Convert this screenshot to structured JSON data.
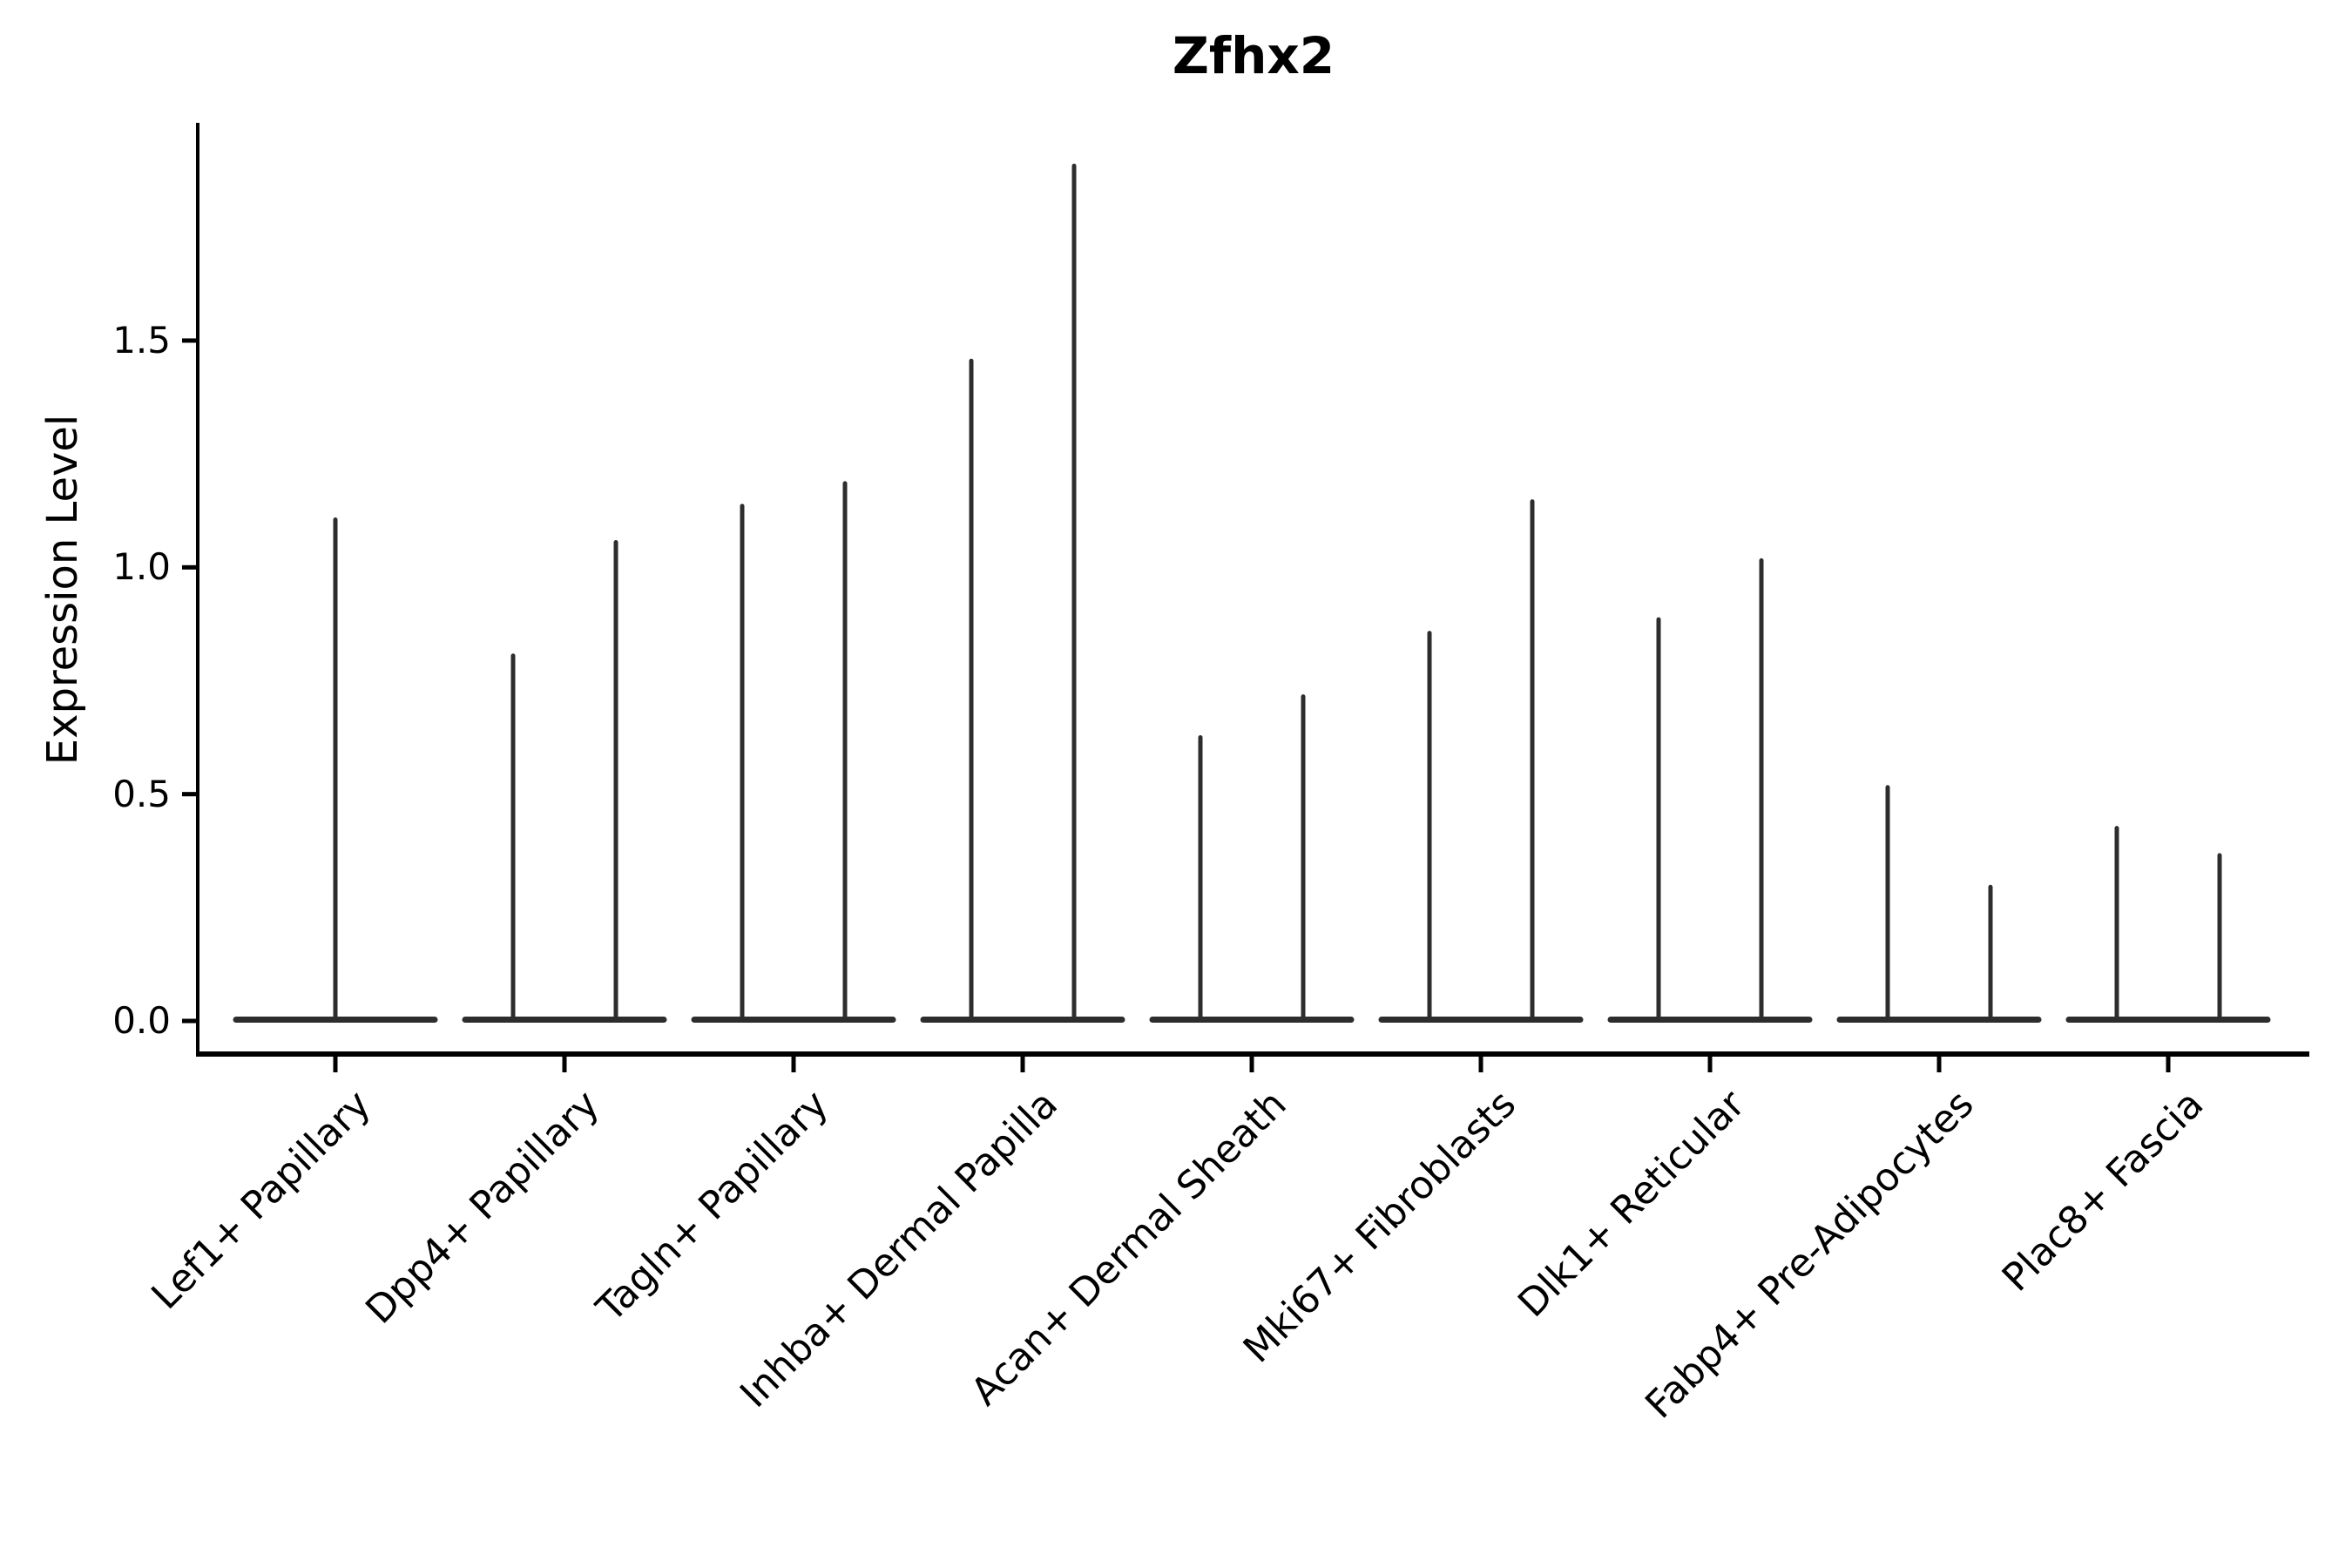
{
  "title": "Zfhx2",
  "axes": {
    "ylabel": "Expression Level",
    "ytick_labels": [
      "0.0",
      "0.5",
      "1.0",
      "1.5"
    ],
    "ytick_values": [
      0.0,
      0.5,
      1.0,
      1.5
    ]
  },
  "colors": {
    "violin": "#2d2d2d",
    "axis": "#000000",
    "text": "#000000",
    "background": "#ffffff"
  },
  "chart_data": {
    "type": "violin",
    "title": "Zfhx2",
    "xlabel": "",
    "ylabel": "Expression Level",
    "ylim": [
      0,
      1.98
    ],
    "yticks": [
      0.0,
      0.5,
      1.0,
      1.5
    ],
    "grid": false,
    "legend": "none",
    "style_note": "Expression is concentrated at 0 in every cluster, so each violin collapses to a flat baseline bar with thin vertical spike(s) reaching its maximum value.",
    "categories": [
      "Lef1+ Papillary",
      "Dpp4+ Papillary",
      "Tagln+ Papillary",
      "Inhba+ Dermal Papilla",
      "Acan+ Dermal Sheath",
      "Mki67+ Fibroblasts",
      "Dlk1+ Reticular",
      "Fabp4+ Pre-Adipocytes",
      "Plac8+ Fascia"
    ],
    "violins": [
      {
        "label": "Lef1+ Papillary",
        "spike_maxima": [
          1.11
        ]
      },
      {
        "label": "Dpp4+ Papillary",
        "spike_maxima": [
          0.81,
          1.06
        ]
      },
      {
        "label": "Tagln+ Papillary",
        "spike_maxima": [
          1.14,
          1.19
        ]
      },
      {
        "label": "Inhba+ Dermal Papilla",
        "spike_maxima": [
          1.46,
          1.89
        ]
      },
      {
        "label": "Acan+ Dermal Sheath",
        "spike_maxima": [
          0.63,
          0.72
        ]
      },
      {
        "label": "Mki67+ Fibroblasts",
        "spike_maxima": [
          0.86,
          1.15
        ]
      },
      {
        "label": "Dlk1+ Reticular",
        "spike_maxima": [
          0.89,
          1.02
        ]
      },
      {
        "label": "Fabp4+ Pre-Adipocytes",
        "spike_maxima": [
          0.52,
          0.3
        ]
      },
      {
        "label": "Plac8+ Fascia",
        "spike_maxima": [
          0.43,
          0.37
        ]
      }
    ]
  }
}
